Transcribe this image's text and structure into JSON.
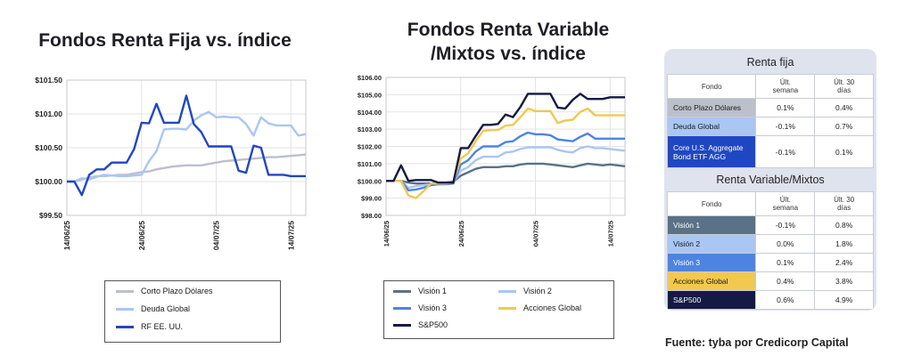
{
  "charts": [
    {
      "title": "Fondos Renta Fija vs. índice",
      "chart_data": {
        "type": "line",
        "title": "Fondos Renta Fija vs. índice",
        "x_tick_labels": [
          "14/06/25",
          "24/06/25",
          "04/07/25",
          "14/07/25"
        ],
        "x_tick_index": [
          0,
          10,
          20,
          30
        ],
        "y_tick_labels": [
          "$99.50",
          "$100.00",
          "$100.50",
          "$101.00",
          "$101.50"
        ],
        "ylim": [
          99.5,
          101.5
        ],
        "legend": "bottom",
        "series": [
          {
            "name": "Corto Plazo Dólares",
            "color": "#bcc0cb",
            "values": [
              100.0,
              100.0,
              100.03,
              100.06,
              100.08,
              100.08,
              100.09,
              100.1,
              100.1,
              100.12,
              100.14,
              100.15,
              100.18,
              100.2,
              100.22,
              100.23,
              100.24,
              100.24,
              100.24,
              100.26,
              100.28,
              100.3,
              100.31,
              100.32,
              100.33,
              100.34,
              100.35,
              100.36,
              100.36,
              100.37,
              100.38,
              100.39,
              100.4
            ]
          },
          {
            "name": "Deuda Global",
            "color": "#a9c6f4",
            "values": [
              100.0,
              100.0,
              100.05,
              100.03,
              100.07,
              100.1,
              100.09,
              100.08,
              100.08,
              100.09,
              100.1,
              100.3,
              100.45,
              100.77,
              100.78,
              100.78,
              100.77,
              100.9,
              100.98,
              101.03,
              100.95,
              100.96,
              100.95,
              100.95,
              100.85,
              100.68,
              100.95,
              100.86,
              100.83,
              100.83,
              100.83,
              100.68,
              100.7
            ]
          },
          {
            "name": "RF EE. UU.",
            "color": "#2047c2",
            "values": [
              100.0,
              100.0,
              99.8,
              100.1,
              100.18,
              100.18,
              100.28,
              100.28,
              100.28,
              100.48,
              100.87,
              100.86,
              101.15,
              100.87,
              100.87,
              100.87,
              101.27,
              100.85,
              100.73,
              100.52,
              100.52,
              100.52,
              100.52,
              100.16,
              100.13,
              100.53,
              100.5,
              100.1,
              100.1,
              100.1,
              100.08,
              100.08,
              100.08
            ]
          }
        ]
      }
    },
    {
      "title": "Fondos Renta Variable /Mixtos vs. índice",
      "title_lines": [
        "Fondos Renta Variable",
        "/Mixtos vs. índice"
      ],
      "chart_data": {
        "type": "line",
        "title": "Fondos Renta Variable /Mixtos vs. índice",
        "x_tick_labels": [
          "14/06/25",
          "24/06/25",
          "04/07/25",
          "14/07/25"
        ],
        "x_tick_index": [
          0,
          10,
          20,
          30
        ],
        "y_tick_labels": [
          "$98.00",
          "$99.00",
          "$100.00",
          "$101.00",
          "$102.00",
          "$103.00",
          "$104.00",
          "$105.00",
          "$106.00"
        ],
        "ylim": [
          98,
          106
        ],
        "legend": "bottom",
        "series": [
          {
            "name": "Visión 1",
            "color": "#5a7187",
            "values": [
              100,
              100,
              100,
              99.9,
              99.85,
              99.85,
              99.85,
              99.9,
              99.9,
              99.95,
              100.3,
              100.5,
              100.7,
              100.8,
              100.8,
              100.8,
              100.85,
              100.85,
              100.95,
              101.0,
              101.0,
              101.0,
              100.95,
              100.9,
              100.85,
              100.8,
              100.9,
              101.0,
              100.95,
              100.9,
              100.95,
              100.9,
              100.85
            ]
          },
          {
            "name": "Visión 2",
            "color": "#a9c6f4",
            "values": [
              100,
              100,
              100,
              99.6,
              99.7,
              99.75,
              99.8,
              99.85,
              99.85,
              99.9,
              100.6,
              100.8,
              101.2,
              101.4,
              101.4,
              101.4,
              101.65,
              101.7,
              101.85,
              101.95,
              101.95,
              101.95,
              101.95,
              101.8,
              101.7,
              101.65,
              101.9,
              102.0,
              101.9,
              101.9,
              101.85,
              101.8,
              101.75
            ]
          },
          {
            "name": "Visión 3",
            "color": "#4d84e2",
            "values": [
              100,
              100,
              100,
              99.45,
              99.5,
              99.6,
              99.75,
              99.8,
              99.8,
              99.85,
              100.95,
              101.2,
              101.7,
              102.0,
              102.0,
              102.0,
              102.25,
              102.3,
              102.6,
              102.8,
              102.7,
              102.7,
              102.65,
              102.4,
              102.35,
              102.3,
              102.55,
              102.75,
              102.45,
              102.45,
              102.45,
              102.45,
              102.45
            ]
          },
          {
            "name": "Acciones Global",
            "color": "#f2c84e",
            "values": [
              100,
              100,
              100,
              99.15,
              99.0,
              99.4,
              99.85,
              99.85,
              99.85,
              99.9,
              101.3,
              101.6,
              102.3,
              102.9,
              102.95,
              102.95,
              103.2,
              103.25,
              103.7,
              104.2,
              104.05,
              104.05,
              104.05,
              103.35,
              103.5,
              103.55,
              104.0,
              104.2,
              103.8,
              103.8,
              103.8,
              103.8,
              103.8
            ]
          },
          {
            "name": "S&P500",
            "color": "#141a44",
            "values": [
              100,
              100,
              100.9,
              100.0,
              100.05,
              100.05,
              100.05,
              99.9,
              99.9,
              99.9,
              101.9,
              101.9,
              102.6,
              103.25,
              103.25,
              103.3,
              103.85,
              103.7,
              104.3,
              105.05,
              105.05,
              105.05,
              105.05,
              104.25,
              104.2,
              104.7,
              105.05,
              104.75,
              104.75,
              104.75,
              104.85,
              104.85,
              104.85
            ]
          }
        ]
      }
    }
  ],
  "tables": {
    "header_fondo": "Fondo",
    "header_week": [
      "Últ.",
      "semana"
    ],
    "header_30": [
      "Últ. 30",
      "días"
    ],
    "renta_fija": {
      "title": "Renta fija",
      "rows": [
        {
          "name": "Corto Plazo Dólares",
          "week": "0.1%",
          "days30": "0.4%",
          "color": "#bcc0cb",
          "text_color": "#1a1a1a"
        },
        {
          "name": "Deuda Global",
          "week": "-0.1%",
          "days30": "0.7%",
          "color": "#a9c6f4",
          "text_color": "#1a1a1a"
        },
        {
          "name": "Core U.S. Aggregate Bond ETF AGG",
          "week": "-0.1%",
          "days30": "0.1%",
          "color": "#2047c2",
          "text_color": "#ffffff"
        }
      ]
    },
    "renta_variable": {
      "title": "Renta Variable/Mixtos",
      "rows": [
        {
          "name": "Visión 1",
          "week": "-0.1%",
          "days30": "0.8%",
          "color": "#5a7187",
          "text_color": "#ffffff"
        },
        {
          "name": "Visión 2",
          "week": "0.0%",
          "days30": "1.8%",
          "color": "#a9c6f4",
          "text_color": "#1a1a1a"
        },
        {
          "name": "Visión 3",
          "week": "0.1%",
          "days30": "2.4%",
          "color": "#4d84e2",
          "text_color": "#ffffff"
        },
        {
          "name": "Acciones Global",
          "week": "0.4%",
          "days30": "3.8%",
          "color": "#f2c84e",
          "text_color": "#1a1a1a"
        },
        {
          "name": "S&P500",
          "week": "0.6%",
          "days30": "4.9%",
          "color": "#141a44",
          "text_color": "#ffffff"
        }
      ]
    }
  },
  "source": "Fuente: tyba por Credicorp Capital"
}
